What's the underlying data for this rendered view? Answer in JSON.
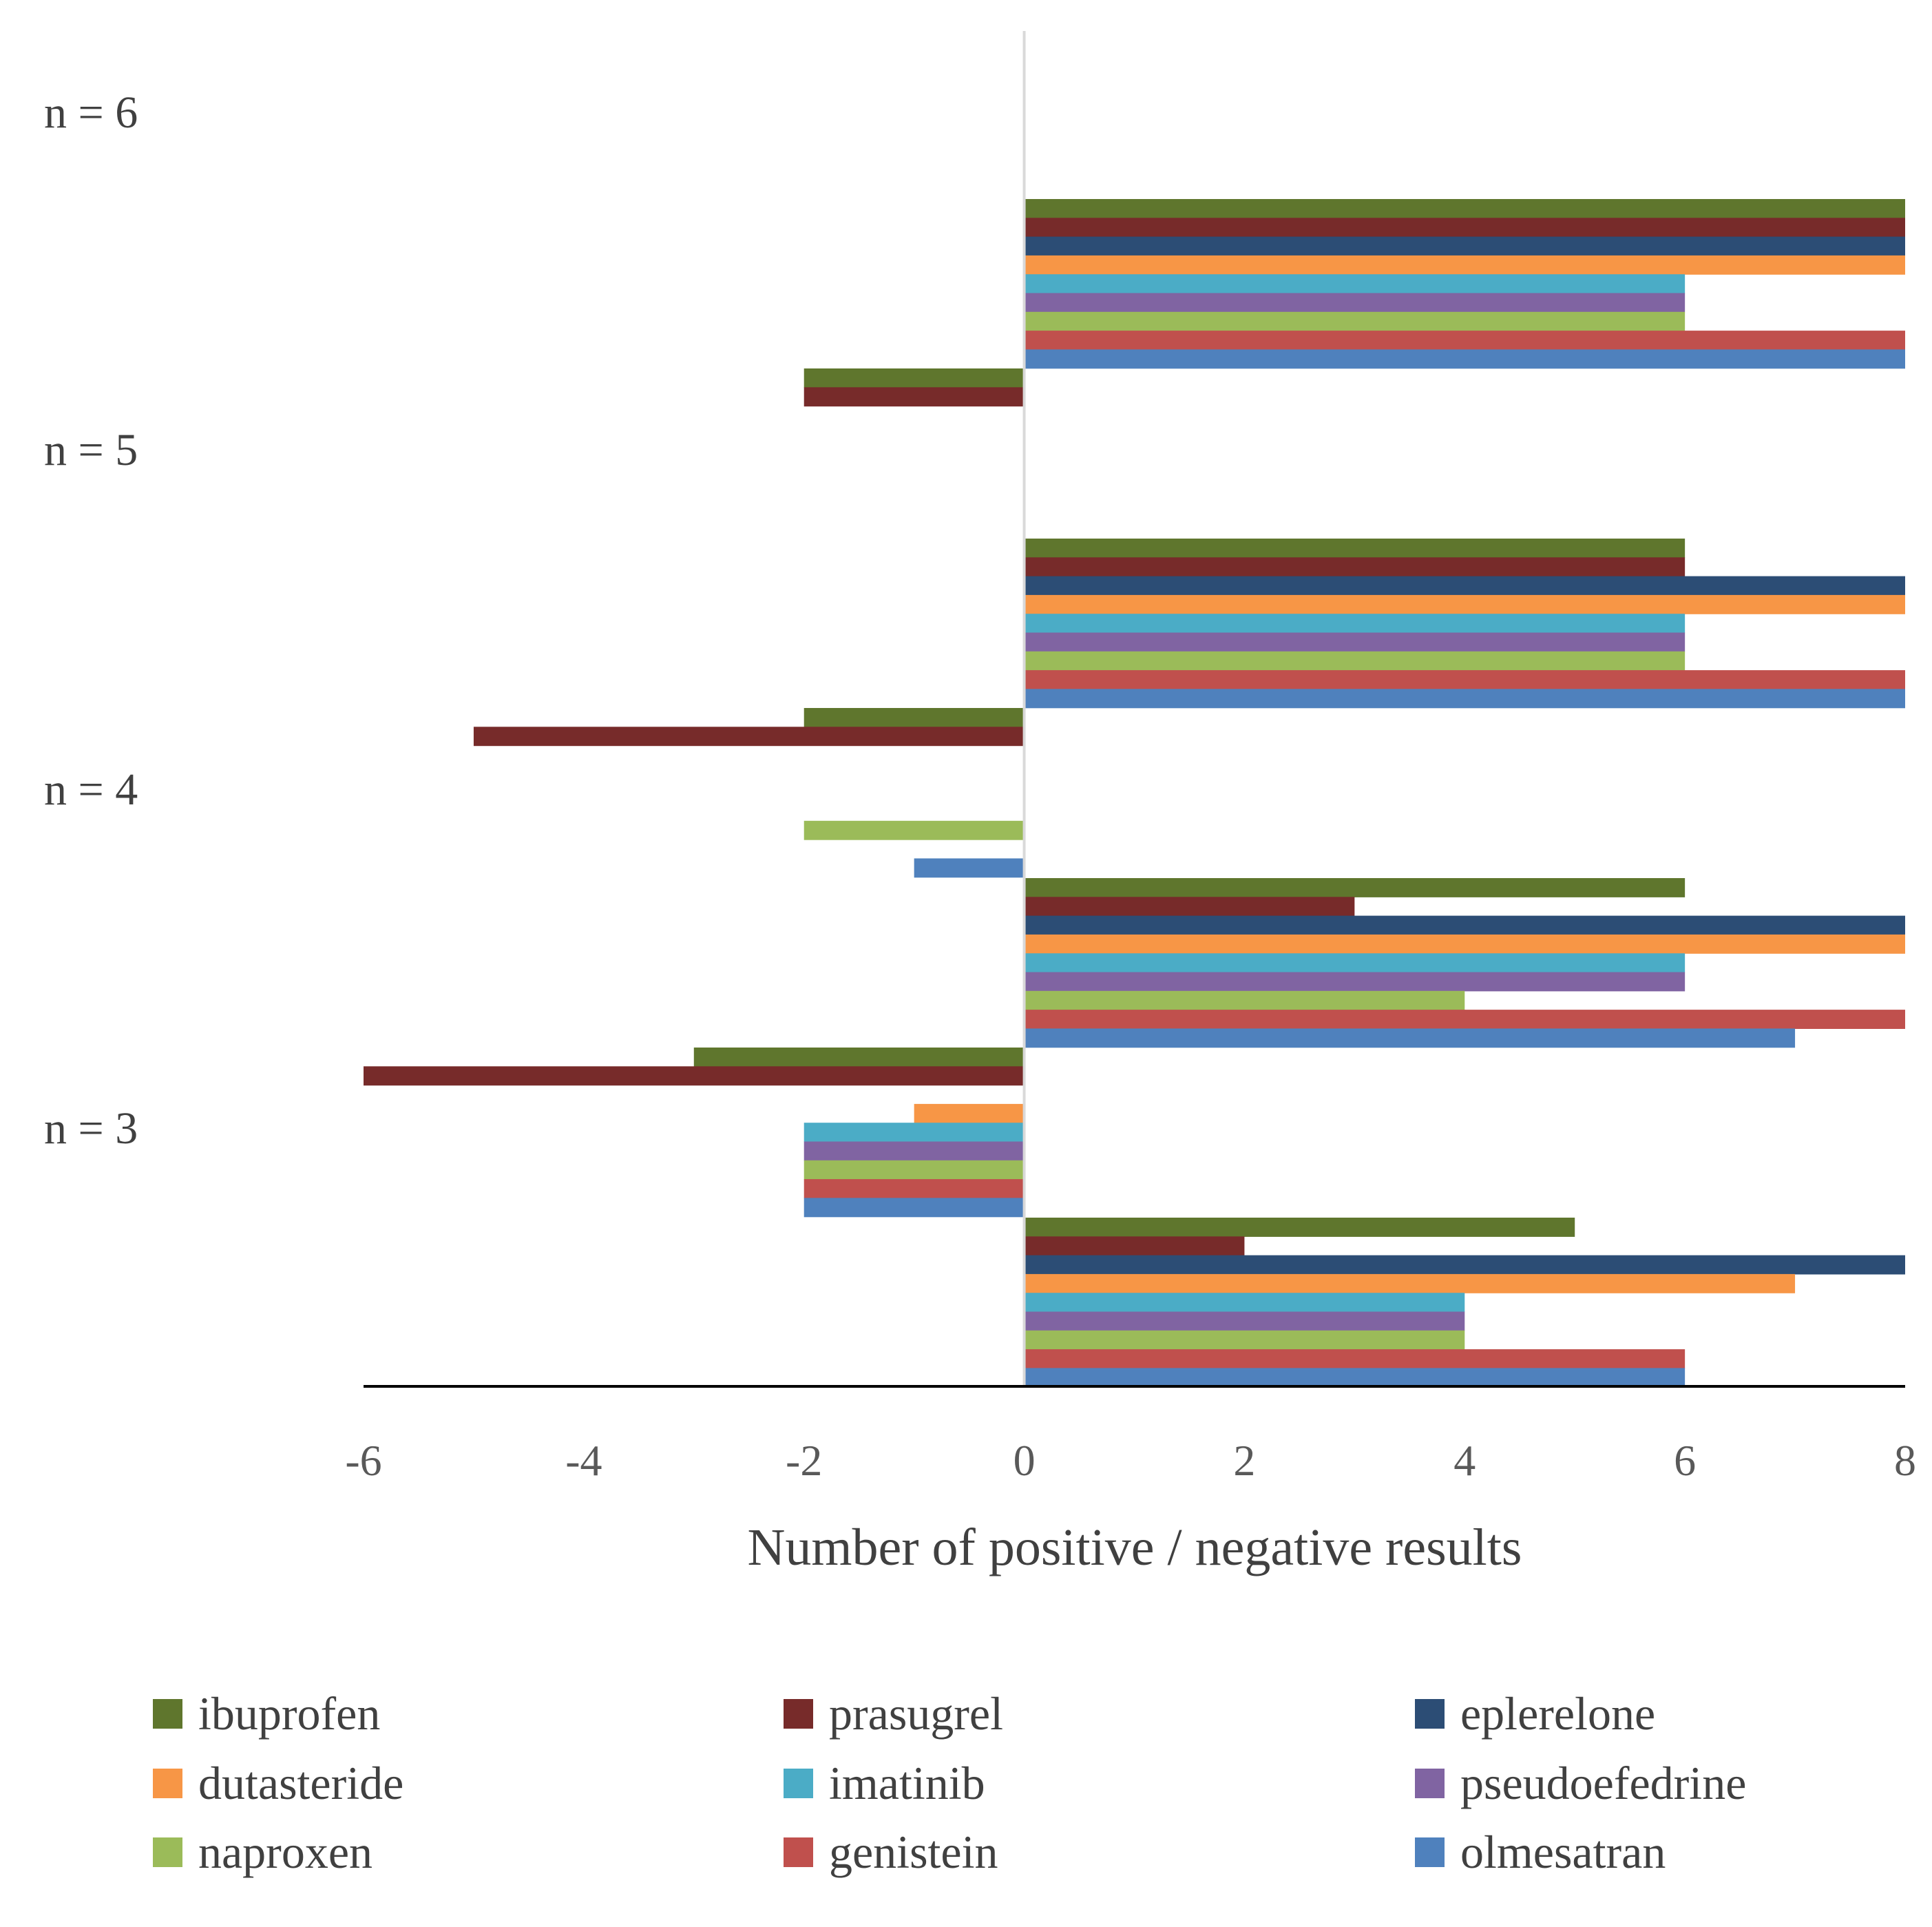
{
  "chart_data": {
    "type": "bar",
    "orientation": "horizontal",
    "xlabel": "Number of positive / negative results",
    "xlim": [
      -6,
      8
    ],
    "xticks": [
      "-6",
      "-4",
      "-2",
      "0",
      "2",
      "4",
      "6",
      "8"
    ],
    "group_labels": [
      "n = 6",
      "n = 5",
      "n = 4",
      "n = 3"
    ],
    "series": [
      {
        "name": "ibuprofen",
        "color": "#5F762D",
        "positive": [
          8,
          6,
          6,
          5
        ],
        "negative": [
          -2,
          -2,
          -3,
          0
        ]
      },
      {
        "name": "prasugrel",
        "color": "#772B2A",
        "positive": [
          8,
          6,
          3,
          2
        ],
        "negative": [
          -2,
          -5,
          -6,
          0
        ]
      },
      {
        "name": "eplerelone",
        "color": "#2C4D75",
        "positive": [
          8,
          8,
          8,
          8
        ],
        "negative": [
          0,
          0,
          0,
          0
        ]
      },
      {
        "name": "dutasteride",
        "color": "#F79646",
        "positive": [
          8,
          8,
          8,
          7
        ],
        "negative": [
          0,
          0,
          -1,
          0
        ]
      },
      {
        "name": "imatinib",
        "color": "#4BACC6",
        "positive": [
          6,
          6,
          6,
          4
        ],
        "negative": [
          0,
          0,
          -2,
          0
        ]
      },
      {
        "name": "pseudoefedrine",
        "color": "#8064A2",
        "positive": [
          6,
          6,
          6,
          4
        ],
        "negative": [
          0,
          0,
          -2,
          0
        ]
      },
      {
        "name": "naproxen",
        "color": "#9BBB59",
        "positive": [
          6,
          6,
          4,
          4
        ],
        "negative": [
          0,
          -2,
          -2,
          0
        ]
      },
      {
        "name": "genistein",
        "color": "#C0504D",
        "positive": [
          8,
          8,
          8,
          6
        ],
        "negative": [
          0,
          0,
          -2,
          0
        ]
      },
      {
        "name": "olmesatran",
        "color": "#4F81BD",
        "positive": [
          8,
          8,
          7,
          6
        ],
        "negative": [
          0,
          -1,
          -2,
          0
        ]
      }
    ],
    "legend_position": "bottom"
  }
}
